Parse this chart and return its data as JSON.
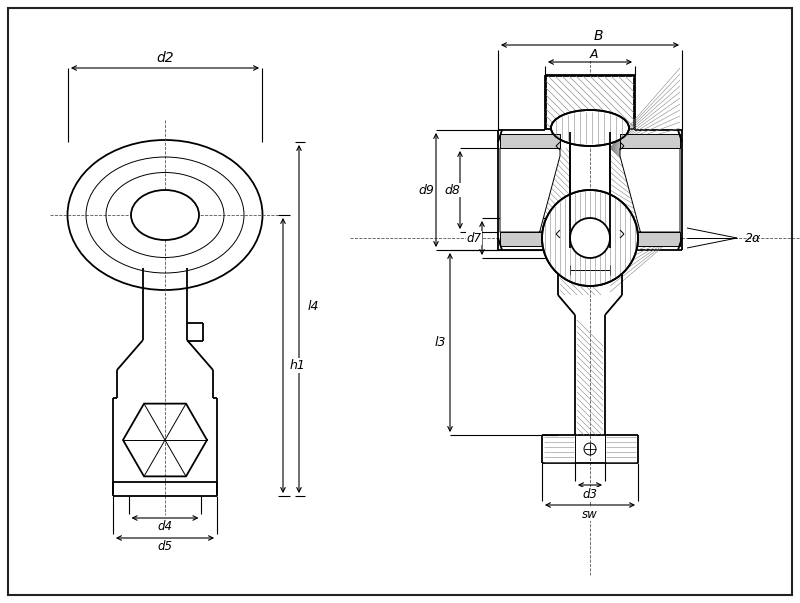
{
  "bg_color": "#ffffff",
  "line_color": "#000000",
  "fig_width": 8.0,
  "fig_height": 6.03,
  "dpi": 100,
  "labels": {
    "d2": "d2",
    "d4": "d4",
    "d5": "d5",
    "h1": "h1",
    "l4": "l4",
    "A": "A",
    "B": "B",
    "d7": "d7",
    "d8": "d8",
    "d9": "d9",
    "l3": "l3",
    "d3": "d3",
    "sw": "sw",
    "2a": "2α"
  }
}
